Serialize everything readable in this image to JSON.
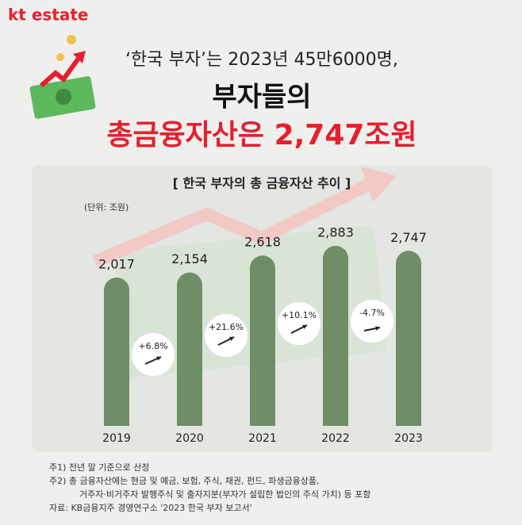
{
  "header": {
    "logo": "kt estate",
    "line1": "‘한국 부자’는 2023년 45만6000명,",
    "line2": "부자들의",
    "line3": "총금융자산은 2,747조원"
  },
  "chart_data": {
    "type": "bar",
    "title": "[ 한국 부자의 총 금융자산 추이 ]",
    "unit": "(단위: 조원)",
    "categories": [
      "2019",
      "2020",
      "2021",
      "2022",
      "2023"
    ],
    "values": [
      2017,
      2154,
      2618,
      2883,
      2747
    ],
    "value_labels": [
      "2,017",
      "2,154",
      "2,618",
      "2,883",
      "2,747"
    ],
    "color": "#6f8d67",
    "annotations": [
      "+6.8%",
      "+21.6%",
      "+10.1%",
      "-4.7%"
    ]
  },
  "notes": [
    "주1) 전년 말 기준으로 산정",
    "주2) 총 금융자산에는 현금 및 예금, 보험, 주식, 채권, 펀드, 파생금융상품,",
    "거주자·비거주자 발행주식 및 출자지분(부자가 설립한 법인의 주식 가치) 등 포함",
    "자료: KB금융지주 경영연구소 '2023 한국 부자 보고서'"
  ]
}
